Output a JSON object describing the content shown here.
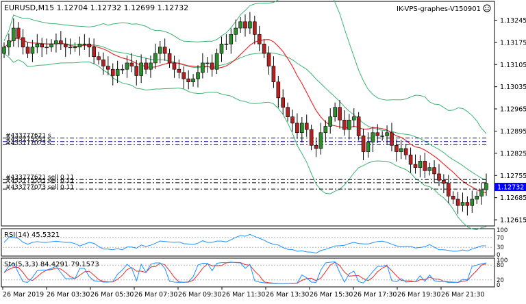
{
  "window": {
    "symbol_info": "EURUSD,M15  1.12704 1.12732 1.12699 1.12732",
    "server_label": "IK-VPS-graphes-V150901"
  },
  "price_axis": {
    "labels": [
      "1.13245",
      "1.13175",
      "1.13105",
      "1.13035",
      "1.12965",
      "1.12895",
      "1.12825",
      "1.12755",
      "1.12685",
      "1.12615"
    ],
    "current_price": "1.12732",
    "current_price_color": "#0000ff"
  },
  "time_axis": {
    "labels": [
      "26 Mar 2019",
      "26 Mar 03:30",
      "26 Mar 05:30",
      "26 Mar 07:30",
      "26 Mar 09:30",
      "26 Mar 11:30",
      "26 Mar 13:30",
      "26 Mar 15:30",
      "26 Mar 17:30",
      "26 Mar 19:30",
      "26 Mar 21:30"
    ]
  },
  "order_labels": {
    "upper": [
      "#433777621 s",
      "#433775551 s",
      "#433777073 s"
    ],
    "lower": [
      "#433777621 sell 0.11",
      "#433775551 sell 0.11",
      "#433777073 sell 0.11"
    ]
  },
  "rsi_panel": {
    "label": "RSI(14) 45.5321",
    "levels": [
      "100",
      "70",
      "30",
      "0"
    ]
  },
  "stoch_panel": {
    "label": "Sto(5,3,3) 84.4291 79.1573",
    "levels": [
      "100",
      "80",
      "20",
      "0"
    ]
  },
  "colors": {
    "bull_candle": "#2e8b2e",
    "bear_candle": "#b22222",
    "ma_line": "#e03030",
    "bollinger": "#3cb371",
    "rsi_line": "#1e90ff",
    "stoch_main": "#1e90ff",
    "stoch_signal": "#e03030",
    "order_line_dash": "#000080"
  },
  "icons": {
    "smiley": "smiley-icon"
  },
  "chart_data": {
    "type": "candlestick",
    "symbol": "EURUSD",
    "timeframe": "M15",
    "ohlc_header": {
      "open": 1.12704,
      "high": 1.12732,
      "low": 1.12699,
      "close": 1.12732
    },
    "ylim": [
      1.126,
      1.133
    ],
    "closes": [
      1.1316,
      1.1318,
      1.1322,
      1.1319,
      1.1316,
      1.1314,
      1.1316,
      1.1317,
      1.1316,
      1.1316,
      1.1317,
      1.1318,
      1.1317,
      1.1316,
      1.1316,
      1.1316,
      1.1317,
      1.1317,
      1.1316,
      1.1313,
      1.1312,
      1.131,
      1.1309,
      1.1307,
      1.1309,
      1.1309,
      1.1311,
      1.131,
      1.1307,
      1.1311,
      1.1309,
      1.1311,
      1.1314,
      1.1316,
      1.1314,
      1.1311,
      1.1309,
      1.1308,
      1.1306,
      1.1305,
      1.1306,
      1.1308,
      1.1311,
      1.1311,
      1.1309,
      1.1314,
      1.1317,
      1.1317,
      1.132,
      1.1322,
      1.1324,
      1.1322,
      1.1324,
      1.132,
      1.1317,
      1.1314,
      1.131,
      1.1305,
      1.13,
      1.1297,
      1.1294,
      1.1292,
      1.1289,
      1.1292,
      1.129,
      1.1285,
      1.1284,
      1.1289,
      1.1291,
      1.1294,
      1.1297,
      1.1293,
      1.129,
      1.1293,
      1.1294,
      1.1288,
      1.1283,
      1.1286,
      1.1289,
      1.1288,
      1.1288,
      1.1289,
      1.1285,
      1.1283,
      1.1284,
      1.1282,
      1.1279,
      1.1278,
      1.128,
      1.1277,
      1.1278,
      1.1276,
      1.1274,
      1.1273,
      1.1269,
      1.1268,
      1.1266,
      1.1267,
      1.1266,
      1.1268,
      1.1269,
      1.1271,
      1.1273
    ],
    "order_levels_sell": [
      1.12742,
      1.12732,
      1.12712
    ],
    "order_levels_stop": [
      1.12873,
      1.12862,
      1.12852
    ],
    "rsi": {
      "value": 45.5321,
      "levels": [
        70,
        30
      ]
    },
    "stochastic": {
      "main": 84.4291,
      "signal": 79.1573,
      "levels": [
        80,
        20
      ]
    }
  }
}
